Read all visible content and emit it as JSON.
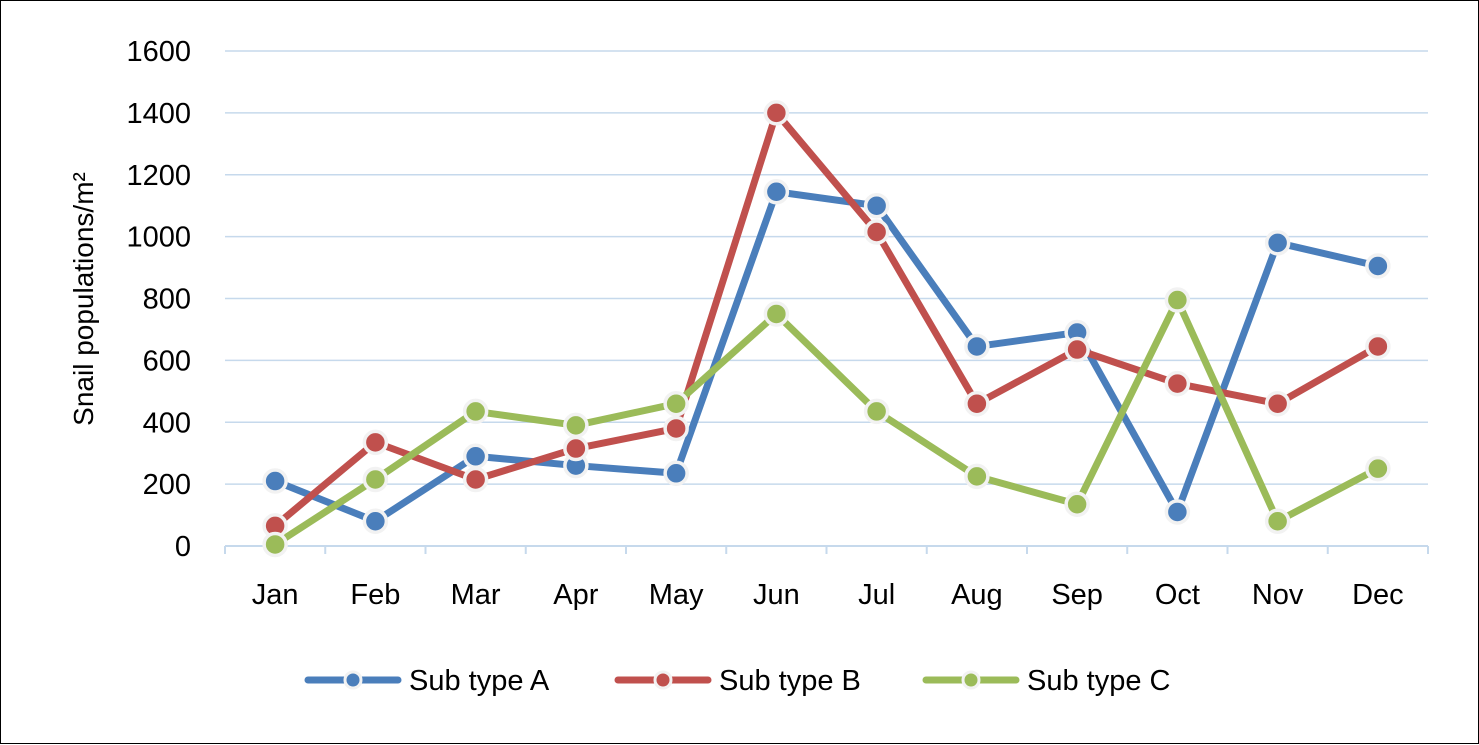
{
  "chart_data": {
    "type": "line",
    "title": "",
    "xlabel": "",
    "ylabel": "Snail populations/m²",
    "categories": [
      "Jan",
      "Feb",
      "Mar",
      "Apr",
      "May",
      "Jun",
      "Jul",
      "Aug",
      "Sep",
      "Oct",
      "Nov",
      "Dec"
    ],
    "ylim": [
      0,
      1600
    ],
    "yticks": [
      "0",
      "200",
      "400",
      "600",
      "800",
      "1000",
      "1200",
      "1400",
      "1600"
    ],
    "grid": true,
    "legend_position": "bottom",
    "series": [
      {
        "name": "Sub type A",
        "color": "#4a7ebb",
        "values": [
          210,
          80,
          290,
          260,
          235,
          1145,
          1100,
          645,
          690,
          110,
          980,
          905
        ]
      },
      {
        "name": "Sub type B",
        "color": "#c0504d",
        "values": [
          65,
          335,
          215,
          315,
          380,
          1400,
          1015,
          460,
          635,
          525,
          460,
          645
        ]
      },
      {
        "name": "Sub type C",
        "color": "#9bbb59",
        "values": [
          5,
          215,
          435,
          390,
          460,
          750,
          435,
          225,
          135,
          795,
          80,
          250
        ]
      }
    ]
  }
}
